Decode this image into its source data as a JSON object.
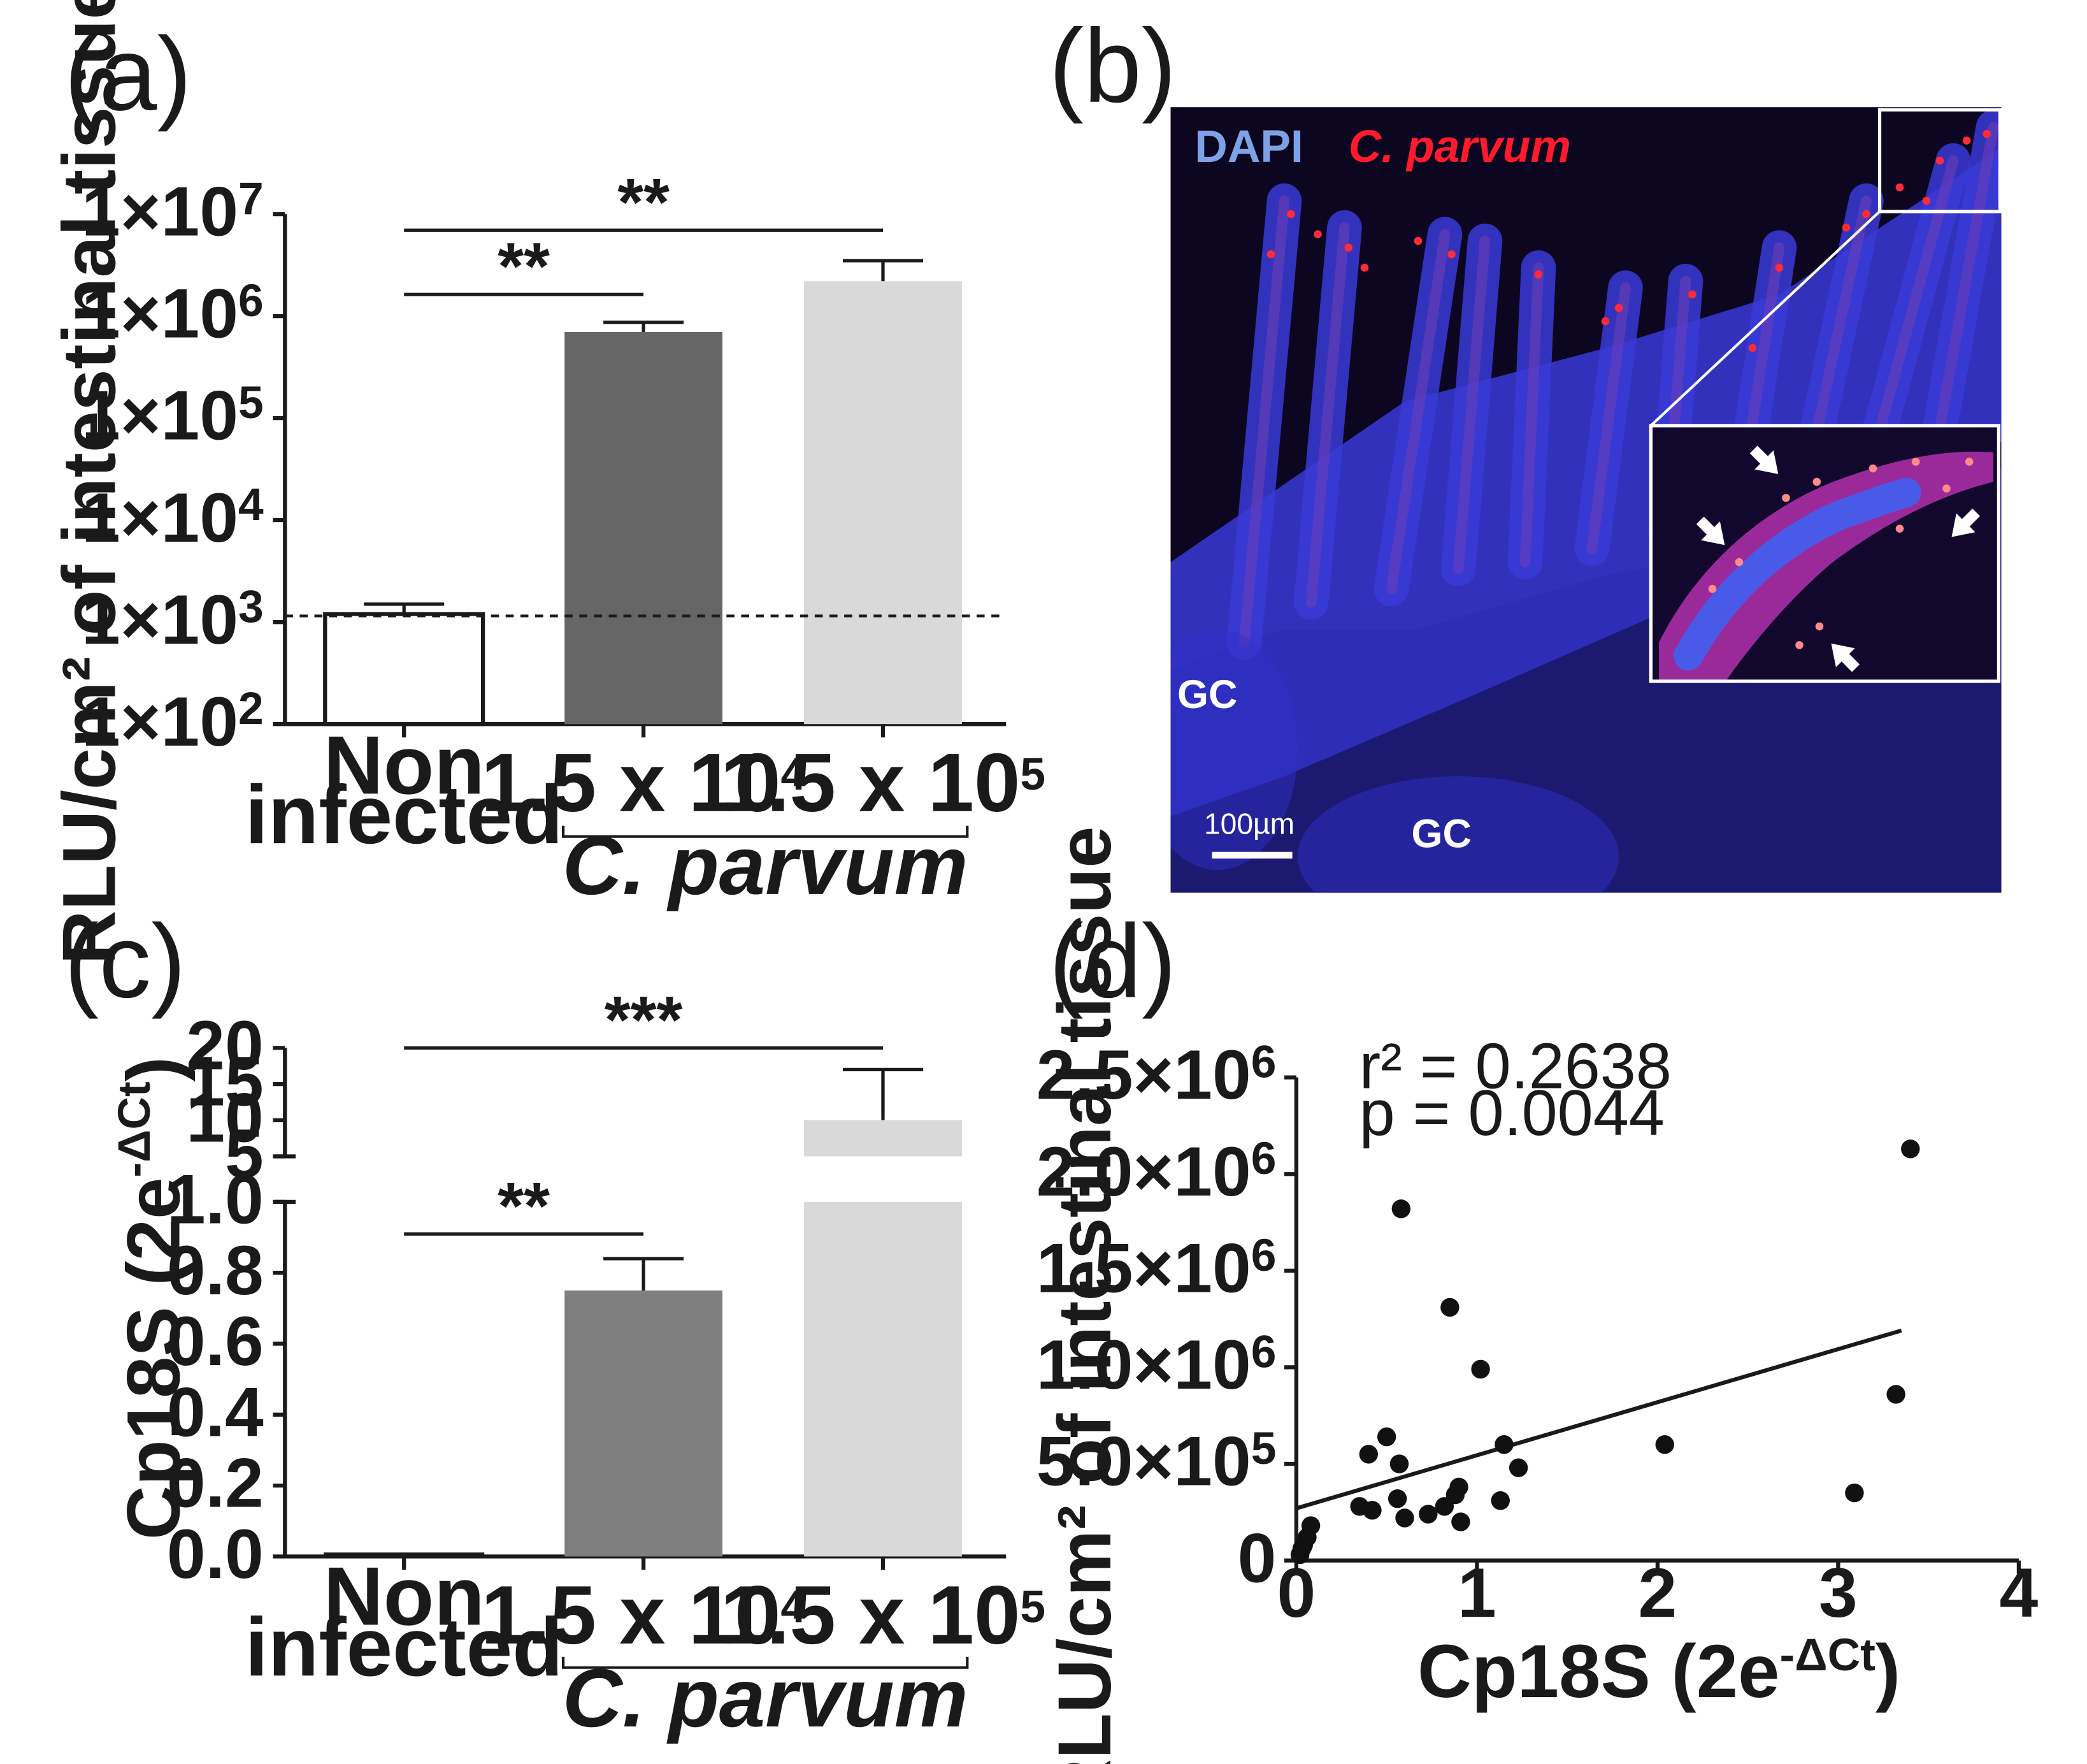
{
  "figure": {
    "panels": [
      "(a)",
      "(b)",
      "(c)",
      "(d)"
    ]
  },
  "colors": {
    "bar_noninfected": "#ffffff",
    "bar_low": "#666666",
    "bar_low_c": "#7f7f7f",
    "bar_high": "#d9d9d9",
    "micro_bg": "#0d0620",
    "dapi": "#3a3ad8",
    "parasite": "#ff2a3a"
  },
  "chart_data": [
    {
      "panel": "(a)",
      "type": "bar",
      "scale": "log",
      "ylabel": "RLU/cm² of intestinal tissue",
      "yticks": [
        {
          "base": "1×10",
          "exp": "2",
          "value": 100
        },
        {
          "base": "1×10",
          "exp": "3",
          "value": 1000
        },
        {
          "base": "1×10",
          "exp": "4",
          "value": 10000
        },
        {
          "base": "1×10",
          "exp": "5",
          "value": 100000
        },
        {
          "base": "1×10",
          "exp": "6",
          "value": 1000000
        },
        {
          "base": "1×10",
          "exp": "7",
          "value": 10000000
        }
      ],
      "ylim": [
        100,
        10000000
      ],
      "categories": [
        {
          "line1": "Non",
          "line2": "infected"
        },
        {
          "base": "1.5 x 10",
          "exp": "4"
        },
        {
          "base": "1.5 x 10",
          "exp": "5"
        }
      ],
      "group_label": "C. parvum",
      "values": [
        1200,
        700000,
        2200000
      ],
      "errors": [
        1500,
        870000,
        3500000
      ],
      "threshold": 1150,
      "significance": [
        {
          "from": 0,
          "to": 1,
          "label": "**"
        },
        {
          "from": 0,
          "to": 2,
          "label": "**"
        }
      ]
    },
    {
      "panel": "(b)",
      "type": "image",
      "labels": {
        "stain1": "DAPI",
        "stain2": "C. parvum",
        "gc1": "GC",
        "gc2": "GC",
        "scale_bar": "100µm"
      }
    },
    {
      "panel": "(c)",
      "type": "bar",
      "scale": "broken-linear",
      "ylabel_base": "Cp18S (2e",
      "ylabel_exp": "-ΔCt",
      "ylabel_end": ")",
      "yticks_lower": [
        "0.0",
        "0.2",
        "0.4",
        "0.6",
        "0.8",
        "1.0"
      ],
      "yticks_upper": [
        "5",
        "10",
        "15",
        "20"
      ],
      "ylim_lower": [
        0,
        1
      ],
      "ylim_upper": [
        5,
        20
      ],
      "categories": [
        {
          "line1": "Non",
          "line2": "infected"
        },
        {
          "base": "1.5 x 10",
          "exp": "4"
        },
        {
          "base": "1.5 x 10",
          "exp": "5"
        }
      ],
      "group_label": "C. parvum",
      "values": [
        0.003,
        0.75,
        10
      ],
      "errors": [
        0.003,
        0.84,
        17
      ],
      "significance": [
        {
          "from": 0,
          "to": 1,
          "label": "**"
        },
        {
          "from": 0,
          "to": 2,
          "label": "***"
        }
      ]
    },
    {
      "panel": "(d)",
      "type": "scatter",
      "ylabel": "RLU/cm² of intestinal tissue",
      "xlabel_base": "Cp18S (2e",
      "xlabel_exp": "-ΔCt",
      "xlabel_end": ")",
      "xticks": [
        "0",
        "1",
        "2",
        "3",
        "4"
      ],
      "yticks": [
        {
          "base": "0",
          "exp": "",
          "value": 0
        },
        {
          "base": "5.0×10",
          "exp": "5",
          "value": 500000
        },
        {
          "base": "1.0×10",
          "exp": "6",
          "value": 1000000
        },
        {
          "base": "1.5×10",
          "exp": "6",
          "value": 1500000
        },
        {
          "base": "2.0×10",
          "exp": "6",
          "value": 2000000
        },
        {
          "base": "2.5×10",
          "exp": "6",
          "value": 2500000
        }
      ],
      "xlim": [
        0,
        4
      ],
      "ylim": [
        0,
        2500000
      ],
      "r2": "r² = 0.2638",
      "p": "p = 0.0044",
      "fit": {
        "x0": 0,
        "y0": 270000,
        "x1": 3.35,
        "y1": 1190000
      },
      "points": [
        [
          0.02,
          30000
        ],
        [
          0.04,
          80000
        ],
        [
          0.06,
          120000
        ],
        [
          0.08,
          180000
        ],
        [
          0.03,
          60000
        ],
        [
          0.35,
          280000
        ],
        [
          0.4,
          550000
        ],
        [
          0.42,
          260000
        ],
        [
          0.5,
          640000
        ],
        [
          0.56,
          320000
        ],
        [
          0.57,
          500000
        ],
        [
          0.58,
          1820000
        ],
        [
          0.6,
          220000
        ],
        [
          0.73,
          240000
        ],
        [
          0.82,
          280000
        ],
        [
          0.85,
          1310000
        ],
        [
          0.88,
          340000
        ],
        [
          0.9,
          380000
        ],
        [
          0.91,
          200000
        ],
        [
          1.02,
          990000
        ],
        [
          1.13,
          310000
        ],
        [
          1.15,
          600000
        ],
        [
          1.23,
          480000
        ],
        [
          2.04,
          600000
        ],
        [
          3.09,
          350000
        ],
        [
          3.32,
          860000
        ],
        [
          3.4,
          2130000
        ]
      ]
    }
  ]
}
